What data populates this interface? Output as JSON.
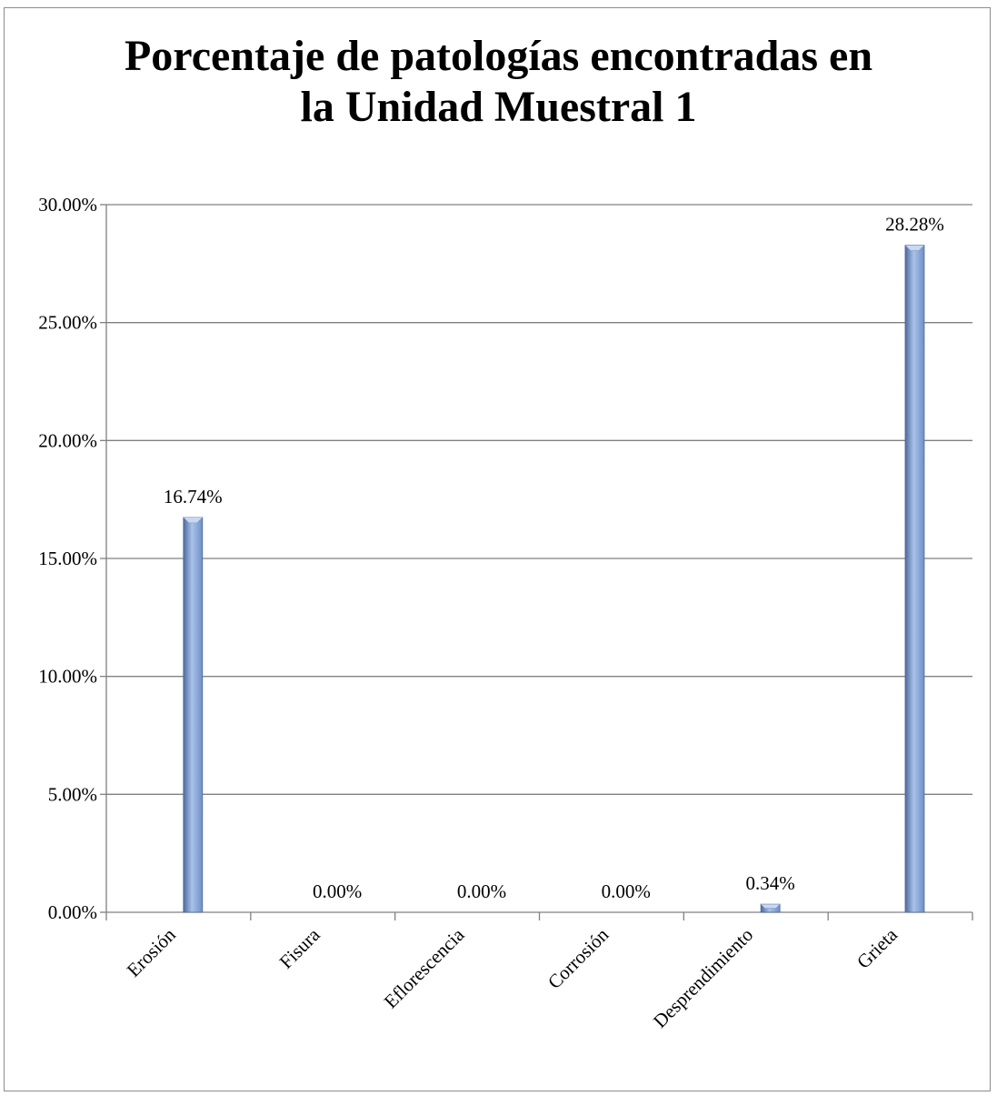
{
  "chart_data": {
    "type": "bar",
    "title_lines": [
      "Porcentaje de patologías encontradas en",
      "la Unidad Muestral 1"
    ],
    "categories": [
      "Erosión",
      "Fisura",
      "Eflorescencia",
      "Corrosión",
      "Desprendimiento",
      "Grieta"
    ],
    "values": [
      16.74,
      0.0,
      0.0,
      0.0,
      0.34,
      28.28
    ],
    "data_labels": [
      "16.74%",
      "0.00%",
      "0.00%",
      "0.00%",
      "0.34%",
      "28.28%"
    ],
    "y_ticks": [
      "0.00%",
      "5.00%",
      "10.00%",
      "15.00%",
      "20.00%",
      "25.00%",
      "30.00%"
    ],
    "ylim": [
      0,
      30
    ],
    "y_step": 5,
    "grid": true,
    "legend": "none",
    "bar_color": "#6f8fc4",
    "bar_color_dark": "#4d6a9c",
    "bar_color_light": "#a9c2ea"
  }
}
